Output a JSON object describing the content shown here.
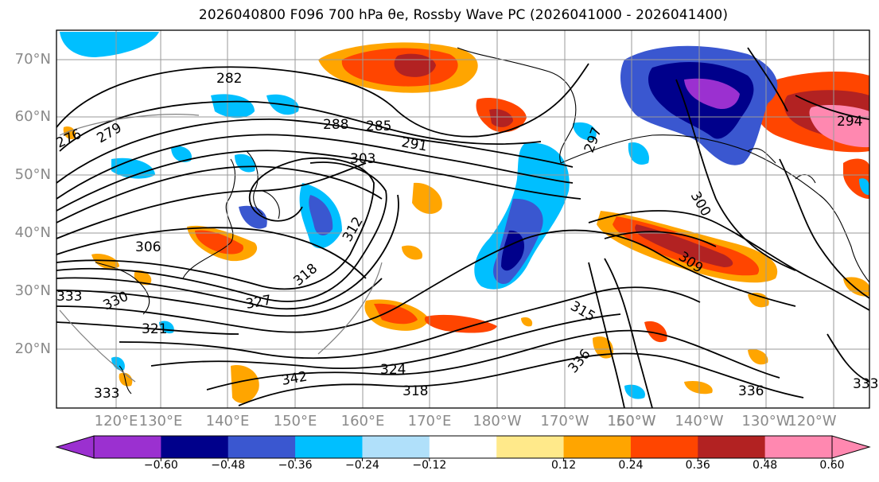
{
  "title": "2026040800 F096 700 hPa θe, Rossby Wave PC (2026041000 - 2026041400)",
  "lat_labels": [
    "70°N",
    "60°N",
    "50°N",
    "40°N",
    "30°N",
    "20°N"
  ],
  "lon_labels": [
    "120°E",
    "130°E",
    "140°E",
    "150°E",
    "160°E",
    "170°E",
    "180°W",
    "170°W",
    "160°W",
    "150°W",
    "140°W",
    "130°W",
    "120°W"
  ],
  "colorbar": {
    "ticks": [
      "−0.60",
      "−0.48",
      "−0.36",
      "−0.24",
      "−0.12",
      "0.12",
      "0.24",
      "0.36",
      "0.48",
      "0.60"
    ],
    "colors": [
      "#9b30d0",
      "#00008b",
      "#3a57d0",
      "#00bfff",
      "#b0e0fa",
      "#ffffff",
      "#ffe98a",
      "#ffa500",
      "#ff4500",
      "#b22222",
      "#ff88b0",
      "#ff88b0"
    ]
  },
  "contour_labels": [
    "282",
    "276",
    "279",
    "288",
    "285",
    "291",
    "303",
    "297",
    "300",
    "309",
    "306",
    "312",
    "318",
    "321",
    "327",
    "330",
    "333",
    "315",
    "324",
    "336",
    "342",
    "294",
    "318",
    "333",
    "336",
    "333"
  ]
}
